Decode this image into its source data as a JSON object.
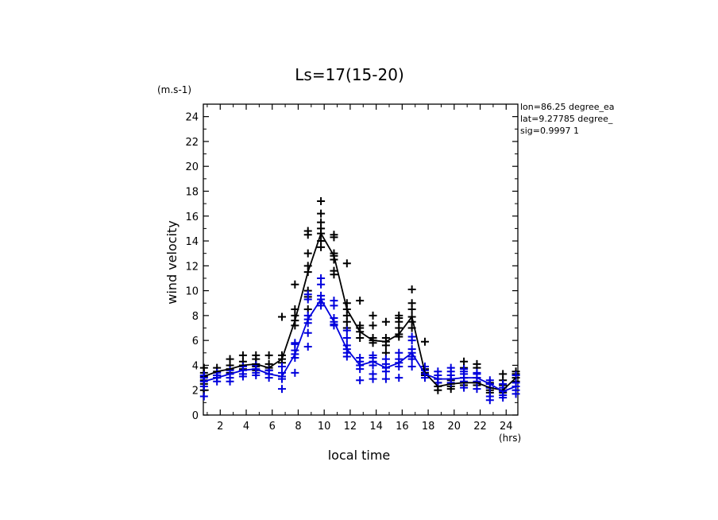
{
  "chart_data": {
    "type": "line",
    "title": "Ls=17(15-20)",
    "xlabel": "local time",
    "ylabel": "wind velocity",
    "x_unit": "(hrs)",
    "y_unit": "(m.s-1)",
    "annotations": [
      "lon=86.25 degree_ea",
      "lat=9.27785 degree_",
      "sig=0.9997 1"
    ],
    "xlim": [
      0.7,
      24.9
    ],
    "ylim": [
      0,
      25
    ],
    "x_ticks": [
      2,
      4,
      6,
      8,
      10,
      12,
      14,
      16,
      18,
      20,
      22,
      24
    ],
    "y_ticks": [
      0,
      2,
      4,
      6,
      8,
      10,
      12,
      14,
      16,
      18,
      20,
      22,
      24
    ],
    "grid": false,
    "colors": {
      "black_series": "#000000",
      "blue_series": "#0000dd"
    },
    "series": [
      {
        "color": "#000000",
        "x": [
          0.75,
          1.75,
          2.75,
          3.75,
          4.75,
          5.75,
          6.75,
          7.75,
          8.75,
          9.75,
          10.75,
          11.75,
          12.75,
          13.75,
          14.75,
          15.75,
          16.75,
          17.75,
          18.75,
          19.75,
          20.75,
          21.75,
          22.75,
          23.75,
          24.75
        ],
        "y": [
          3.1,
          3.5,
          3.7,
          4.0,
          4.1,
          3.8,
          4.5,
          7.6,
          11.5,
          14.6,
          12.8,
          8.5,
          6.7,
          6.0,
          5.9,
          6.5,
          7.9,
          3.4,
          2.3,
          2.5,
          2.6,
          2.6,
          2.2,
          2.0,
          3.0
        ],
        "scatter": [
          [
            3.1,
            3.4,
            2.8,
            2.5,
            3.8,
            2.0
          ],
          [
            3.5,
            3.8,
            3.2,
            3.0
          ],
          [
            3.7,
            4.0,
            4.5,
            3.4
          ],
          [
            4.0,
            4.3,
            3.7,
            4.8
          ],
          [
            4.1,
            4.5,
            3.9,
            4.8,
            3.6
          ],
          [
            3.8,
            4.1,
            3.6,
            4.8
          ],
          [
            4.5,
            4.8,
            4.2,
            7.9
          ],
          [
            7.6,
            8.0,
            8.5,
            7.2,
            10.5
          ],
          [
            11.5,
            12.0,
            13.0,
            14.5,
            14.8,
            9.5,
            10.0,
            8.5
          ],
          [
            14.6,
            15.0,
            15.5,
            16.2,
            17.2,
            14.0,
            13.5
          ],
          [
            12.8,
            13.0,
            14.3,
            14.5,
            11.3,
            11.6,
            12.5
          ],
          [
            8.5,
            8.0,
            9.0,
            12.2,
            7.5,
            7.0
          ],
          [
            6.7,
            7.0,
            7.2,
            6.2,
            9.2
          ],
          [
            6.0,
            6.2,
            5.8,
            7.2,
            8.0
          ],
          [
            5.9,
            6.2,
            5.6,
            7.5,
            5.0
          ],
          [
            6.5,
            7.0,
            6.3,
            7.5,
            7.8,
            8.0
          ],
          [
            7.9,
            8.5,
            9.0,
            7.5,
            10.1,
            7.0
          ],
          [
            3.4,
            3.7,
            3.2,
            5.9
          ],
          [
            2.3,
            2.6,
            2.0,
            2.9
          ],
          [
            2.5,
            2.8,
            2.3,
            2.1
          ],
          [
            2.6,
            3.0,
            2.4,
            3.8,
            4.3
          ],
          [
            2.6,
            3.0,
            2.4,
            3.8,
            4.1
          ],
          [
            2.2,
            2.5,
            2.0,
            1.8,
            2.6
          ],
          [
            2.0,
            2.4,
            1.8,
            2.8,
            3.3
          ],
          [
            3.0,
            3.3,
            2.7,
            3.5
          ]
        ]
      },
      {
        "color": "#0000dd",
        "x": [
          0.75,
          1.75,
          2.75,
          3.75,
          4.75,
          5.75,
          6.75,
          7.75,
          8.75,
          9.75,
          10.75,
          11.75,
          12.75,
          13.75,
          14.75,
          15.75,
          16.75,
          17.75,
          18.75,
          19.75,
          20.75,
          21.75,
          22.75,
          23.75,
          24.75
        ],
        "y": [
          2.7,
          3.0,
          3.3,
          3.6,
          3.7,
          3.3,
          3.1,
          4.9,
          7.7,
          9.3,
          7.5,
          5.3,
          4.0,
          4.3,
          3.8,
          4.2,
          5.0,
          3.3,
          2.9,
          2.9,
          3.0,
          3.0,
          2.5,
          1.9,
          2.3
        ],
        "scatter": [
          [
            2.7,
            3.0,
            2.3,
            1.5,
            3.2
          ],
          [
            3.0,
            3.2,
            2.7,
            3.4
          ],
          [
            3.3,
            3.6,
            3.0,
            2.7
          ],
          [
            3.6,
            3.9,
            3.3,
            3.1
          ],
          [
            3.7,
            4.0,
            3.4,
            3.2
          ],
          [
            3.3,
            3.6,
            3.0,
            3.6
          ],
          [
            3.1,
            3.4,
            2.9,
            2.1,
            3.9
          ],
          [
            4.9,
            5.2,
            5.7,
            4.6,
            3.4,
            5.8
          ],
          [
            7.7,
            8.0,
            7.4,
            9.3,
            9.7,
            6.6,
            5.5
          ],
          [
            9.3,
            9.6,
            9.0,
            10.5,
            11.0,
            8.8
          ],
          [
            7.5,
            7.8,
            7.2,
            8.8,
            9.2,
            7.3
          ],
          [
            5.3,
            5.6,
            5.0,
            6.2,
            6.8,
            4.7
          ],
          [
            4.0,
            4.3,
            3.7,
            4.6,
            2.8
          ],
          [
            4.3,
            4.6,
            4.0,
            4.8,
            3.3,
            2.9
          ],
          [
            3.8,
            4.1,
            3.5,
            4.5,
            2.9
          ],
          [
            4.2,
            4.5,
            3.9,
            5.0,
            3.0
          ],
          [
            5.0,
            5.3,
            4.7,
            6.0,
            6.3,
            3.9,
            4.5
          ],
          [
            3.3,
            3.6,
            3.0,
            3.9
          ],
          [
            2.9,
            3.2,
            2.6,
            3.5
          ],
          [
            2.9,
            3.2,
            2.6,
            3.5,
            3.8
          ],
          [
            3.0,
            3.3,
            2.7,
            3.5,
            3.7,
            2.2
          ],
          [
            3.0,
            3.3,
            2.7,
            3.4,
            2.1
          ],
          [
            2.5,
            2.8,
            2.2,
            1.5,
            1.2
          ],
          [
            1.9,
            2.2,
            1.6,
            1.4,
            2.5
          ],
          [
            2.3,
            2.6,
            2.0,
            1.7,
            3.2
          ]
        ]
      }
    ]
  }
}
